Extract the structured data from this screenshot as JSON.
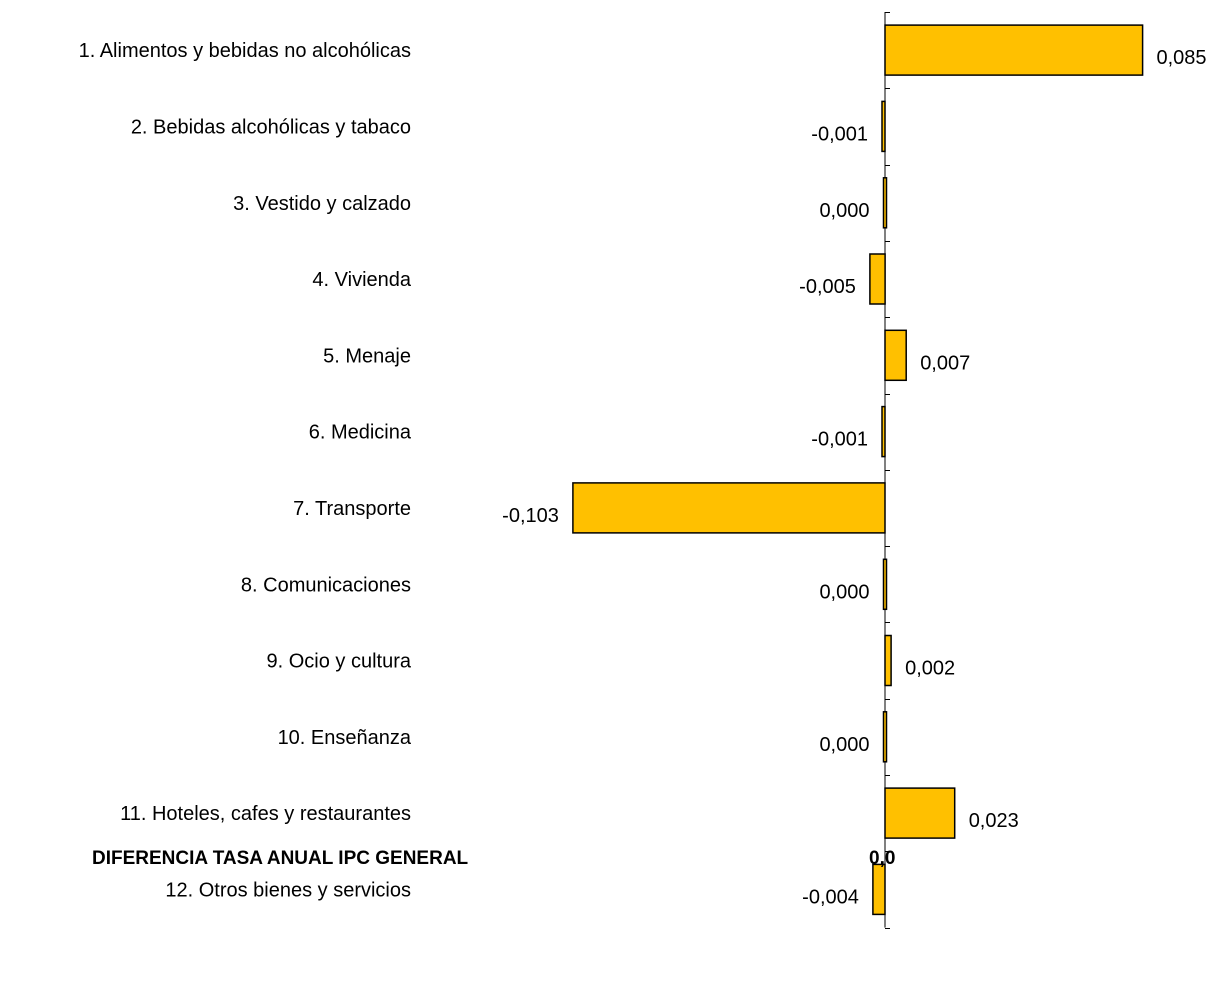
{
  "chart_data": {
    "type": "bar",
    "orientation": "horizontal",
    "categories": [
      "1. Alimentos y bebidas no alcohólicas",
      "2. Bebidas alcohólicas y tabaco",
      "3. Vestido y calzado",
      "4. Vivienda",
      "5. Menaje",
      "6. Medicina",
      "7. Transporte",
      "8. Comunicaciones",
      "9. Ocio y cultura",
      "10. Enseñanza",
      "11. Hoteles, cafes y restaurantes",
      "12. Otros bienes y servicios"
    ],
    "values": [
      0.085,
      -0.001,
      0.0,
      -0.005,
      0.007,
      -0.001,
      -0.103,
      0.0,
      0.002,
      0.0,
      0.023,
      -0.004
    ],
    "value_labels": [
      "0,085",
      "-0,001",
      "0,000",
      "-0,005",
      "0,007",
      "-0,001",
      "-0,103",
      "0,000",
      "0,002",
      "0,000",
      "0,023",
      "-0,004"
    ],
    "xlim": [
      -0.103,
      0.085
    ],
    "grid": false,
    "legend": "none",
    "bar_color": "#FFC000",
    "bar_edge_color": "#000000"
  },
  "footer": {
    "label": "DIFERENCIA TASA ANUAL IPC GENERAL",
    "value": "0,0"
  }
}
